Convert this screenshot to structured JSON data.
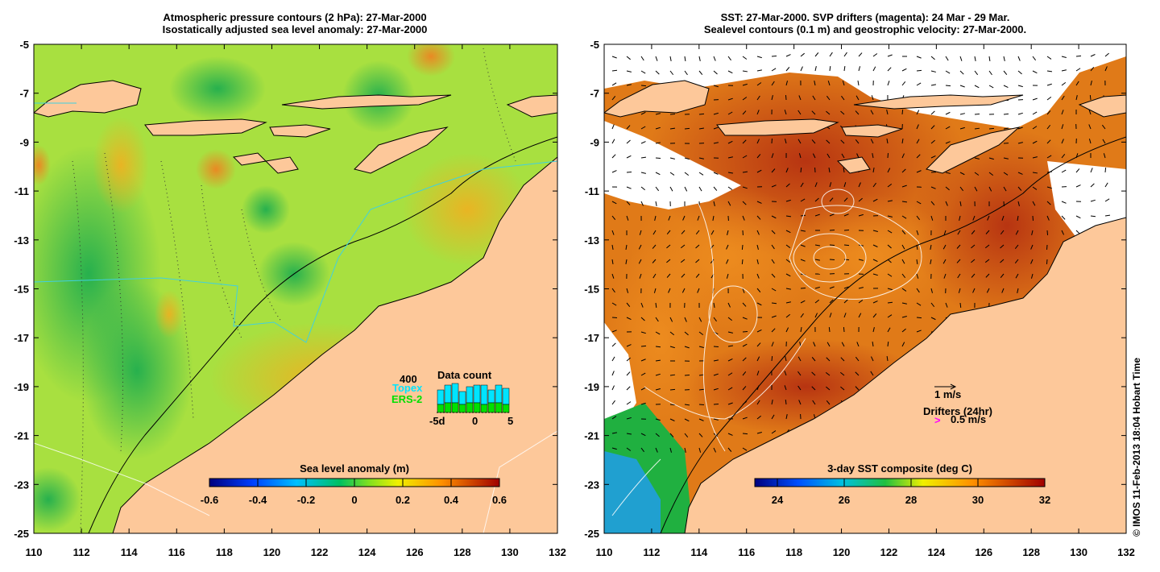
{
  "left_panel": {
    "title_line1": "Atmospheric pressure contours (2 hPa): 27-Mar-2000",
    "title_line2": "Isostatically adjusted sea level anomaly: 27-Mar-2000",
    "colorbar": {
      "label": "Sea level anomaly (m)",
      "ticks": [
        "-0.6",
        "-0.4",
        "-0.2",
        "0",
        "0.2",
        "0.4",
        "0.6"
      ]
    },
    "data_count": {
      "title": "Data count",
      "max_label": "400",
      "topex_label": "Topex",
      "ers_label": "ERS-2",
      "axis_labels": [
        "-5d",
        "0",
        "5"
      ],
      "topex_color": "#00e5ff",
      "ers_color": "#00e000"
    }
  },
  "right_panel": {
    "title_line1": "SST: 27-Mar-2000. SVP drifters (magenta): 24 Mar - 29 Mar.",
    "title_line2": "Sealevel contours (0.1 m) and geostrophic velocity: 27-Mar-2000.",
    "colorbar": {
      "label": "3-day SST composite (deg C)",
      "ticks": [
        "24",
        "26",
        "28",
        "30",
        "32"
      ]
    },
    "velocity_scale_label": "1 m/s",
    "drifters_label": "Drifters (24hr)",
    "drifter_speed_label": "0.5 m/s",
    "drifter_color": "#ff00ff"
  },
  "axes": {
    "lon_ticks": [
      "110",
      "112",
      "114",
      "116",
      "118",
      "120",
      "122",
      "124",
      "126",
      "128",
      "130",
      "132"
    ],
    "lat_ticks": [
      "-5",
      "-7",
      "-9",
      "-11",
      "-13",
      "-15",
      "-17",
      "-19",
      "-21",
      "-23",
      "-25"
    ]
  },
  "credit": "© IMOS 11-Feb-2013 18:04 Hobart Time",
  "colors": {
    "land": "#fdc89a",
    "sla_low": "#00c040",
    "sla_mid": "#a0e040",
    "sla_high": "#f0c030",
    "sst_warm": "#e06010",
    "sst_hot": "#c03010",
    "cloud": "#ffffff"
  }
}
